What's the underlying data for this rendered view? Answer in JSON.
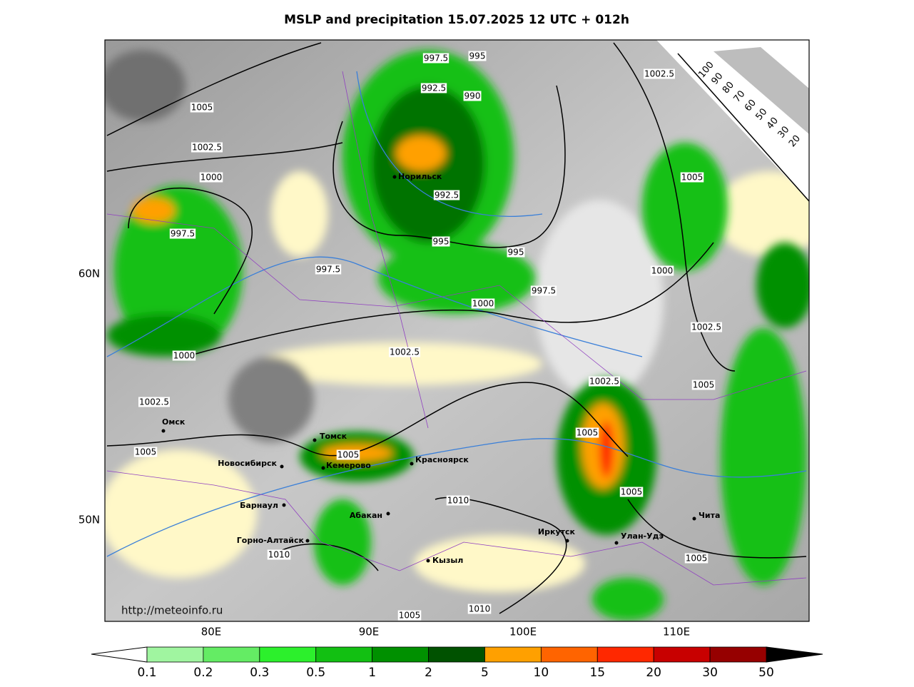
{
  "title": "MSLP and precipitation 15.07.2025 12 UTC + 012h",
  "url": "http://meteoinfo.ru",
  "lat_labels": [
    "60N",
    "50N"
  ],
  "lon_labels": [
    "80E",
    "90E",
    "100E",
    "110E"
  ],
  "isobar_labels": [
    997.5,
    995,
    992.5,
    990,
    1002.5,
    1005,
    1002.5,
    1000,
    992.5,
    1005,
    997.5,
    995,
    995,
    1000,
    997.5,
    997.5,
    1000,
    1002.5,
    1002.5,
    1000,
    1002.5,
    1005,
    1002.5,
    1005,
    1005,
    1005,
    1005,
    1010,
    1005,
    1010,
    1010,
    1005
  ],
  "cities": [
    "Норильск",
    "Омск",
    "Томск",
    "Новосибирск",
    "Кемерово",
    "Красноярск",
    "Барнаул",
    "Абакан",
    "Горно-Алтайск",
    "Иркутск",
    "Улан-Удэ",
    "Чита",
    "Кызыл"
  ],
  "cloud_legend": [
    100,
    90,
    80,
    70,
    60,
    50,
    40,
    30,
    20
  ],
  "colorbar": {
    "levels": [
      0.1,
      0.2,
      0.3,
      0.5,
      1,
      2,
      5,
      10,
      15,
      20,
      30,
      50
    ],
    "colors": [
      "#a0f5a0",
      "#64ec64",
      "#2cf02c",
      "#12c012",
      "#009000",
      "#005200",
      "#ffa000",
      "#ff6400",
      "#ff2800",
      "#c80000",
      "#960000"
    ]
  }
}
